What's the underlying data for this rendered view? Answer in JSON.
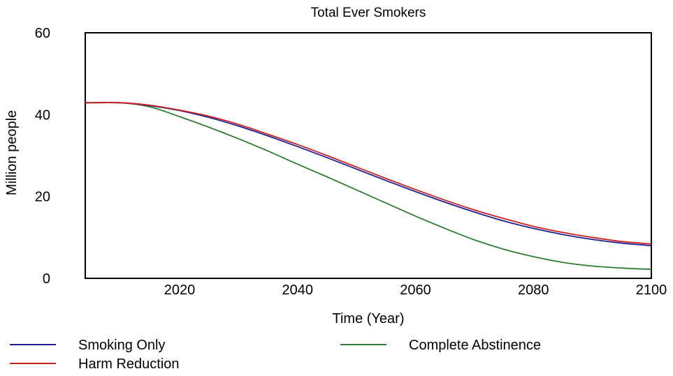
{
  "chart_data": {
    "type": "line",
    "title": "Total Ever Smokers",
    "xlabel": "Time (Year)",
    "ylabel": "Million people",
    "xlim": [
      2004,
      2100
    ],
    "ylim": [
      0,
      60
    ],
    "x_ticks": [
      "2020",
      "2040",
      "2060",
      "2080",
      "2100"
    ],
    "y_ticks": [
      "0",
      "20",
      "40",
      "60"
    ],
    "grid": false,
    "legend_position": "bottom",
    "x": [
      2004,
      2010,
      2015,
      2020,
      2025,
      2030,
      2035,
      2040,
      2045,
      2050,
      2055,
      2060,
      2065,
      2070,
      2075,
      2080,
      2085,
      2090,
      2095,
      2100
    ],
    "series": [
      {
        "name": "Smoking Only",
        "color": "#1f1f8f",
        "values": [
          42.9,
          42.9,
          42.2,
          41.0,
          39.3,
          37.2,
          34.8,
          32.2,
          29.5,
          26.7,
          23.9,
          21.2,
          18.6,
          16.2,
          14.0,
          12.2,
          10.7,
          9.5,
          8.6,
          8.0
        ]
      },
      {
        "name": "Harm Reduction",
        "color": "#cc2020",
        "values": [
          42.9,
          42.9,
          42.3,
          41.1,
          39.6,
          37.6,
          35.2,
          32.7,
          30.0,
          27.2,
          24.4,
          21.7,
          19.1,
          16.7,
          14.6,
          12.7,
          11.2,
          10.0,
          9.0,
          8.4
        ]
      },
      {
        "name": "Complete Abstinence",
        "color": "#2e7d32",
        "values": [
          42.9,
          42.9,
          41.9,
          39.5,
          36.9,
          34.1,
          31.1,
          27.9,
          24.8,
          21.6,
          18.4,
          15.2,
          12.2,
          9.4,
          7.1,
          5.3,
          3.9,
          3.0,
          2.5,
          2.2
        ]
      }
    ]
  }
}
